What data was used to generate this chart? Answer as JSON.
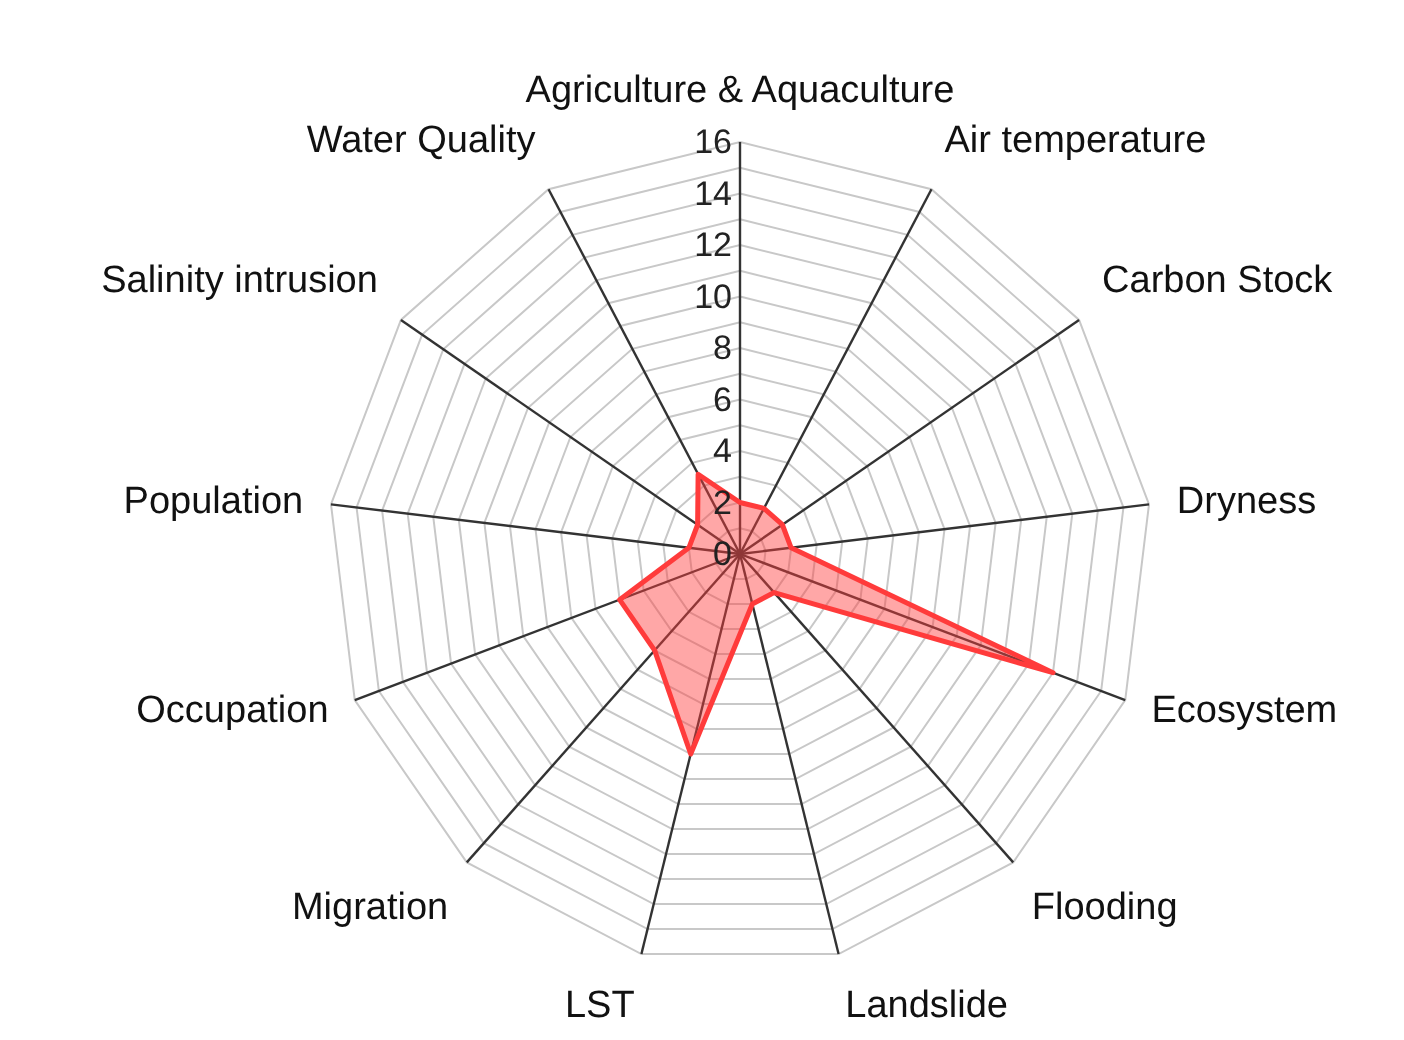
{
  "chart_data": {
    "type": "radar",
    "categories": [
      "Agriculture & Aquaculture",
      "Air temperature",
      "Carbon Stock",
      "Dryness",
      "Ecosystem",
      "Flooding",
      "Landslide",
      "LST",
      "Migration",
      "Occupation",
      "Population",
      "Salinity intrusion",
      "Water Quality"
    ],
    "series": [
      {
        "color": "#ff3b3b",
        "values": [
          2,
          2,
          2,
          2,
          13,
          2,
          2,
          8,
          5,
          5,
          2,
          2,
          3.5
        ]
      }
    ],
    "ylim": [
      0,
      16
    ],
    "yticks": [
      0,
      2,
      4,
      6,
      8,
      10,
      12,
      14,
      16
    ],
    "grid": true
  }
}
